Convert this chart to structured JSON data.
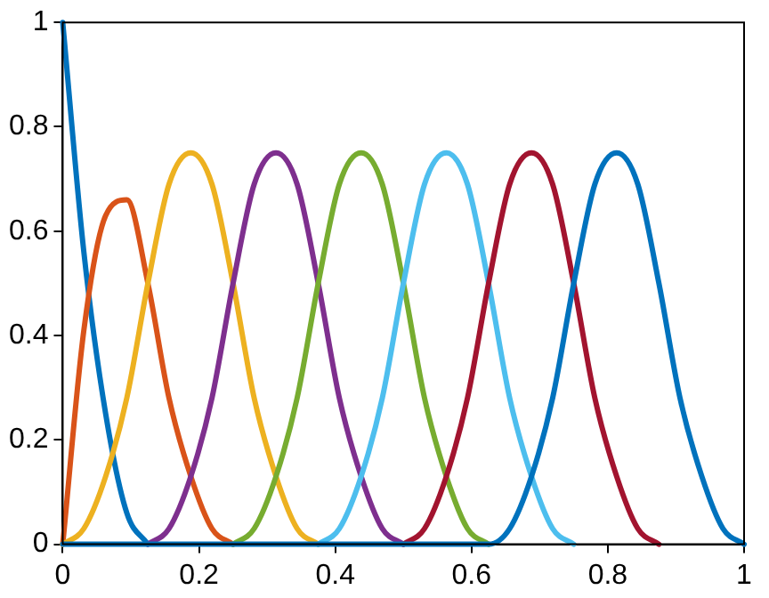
{
  "chart_data": {
    "type": "line",
    "x": [
      0,
      0.031,
      0.063,
      0.094,
      0.125,
      0.156,
      0.188,
      0.219,
      0.25,
      0.281,
      0.313,
      0.344,
      0.375,
      0.406,
      0.438,
      0.469,
      0.5,
      0.531,
      0.563,
      0.594,
      0.625,
      0.656,
      0.688,
      0.719,
      0.75,
      0.781,
      0.813,
      0.844,
      0.875,
      0.906,
      0.938,
      0.969,
      1
    ],
    "series": [
      {
        "color": "#0072bd",
        "values": [
          1,
          0.56,
          0.25,
          0.06,
          0,
          null,
          null,
          null,
          null,
          null,
          null,
          null,
          null,
          null,
          null,
          null,
          null,
          null,
          null,
          null,
          null,
          null,
          null,
          null,
          null,
          null,
          null,
          null,
          null,
          null,
          null,
          null,
          null
        ]
      },
      {
        "color": "#d95319",
        "values": [
          0,
          0.41,
          0.63,
          0.66,
          0.5,
          0.28,
          0.13,
          0.03,
          0,
          null,
          null,
          null,
          null,
          null,
          null,
          null,
          null,
          null,
          null,
          null,
          null,
          null,
          null,
          null,
          null,
          null,
          null,
          null,
          null,
          null,
          null,
          null,
          null
        ]
      },
      {
        "color": "#edb120",
        "values": [
          0,
          0.03,
          0.13,
          0.28,
          0.5,
          0.69,
          0.75,
          0.69,
          0.5,
          0.28,
          0.13,
          0.03,
          0,
          null,
          null,
          null,
          null,
          null,
          null,
          null,
          null,
          null,
          null,
          null,
          null,
          null,
          null,
          null,
          null,
          null,
          null,
          null,
          null
        ]
      },
      {
        "color": "#7e2f8e",
        "values": [
          null,
          null,
          null,
          null,
          0,
          0.03,
          0.13,
          0.28,
          0.5,
          0.69,
          0.75,
          0.69,
          0.5,
          0.28,
          0.13,
          0.03,
          0,
          null,
          null,
          null,
          null,
          null,
          null,
          null,
          null,
          null,
          null,
          null,
          null,
          null,
          null,
          null,
          null
        ]
      },
      {
        "color": "#77ac30",
        "values": [
          null,
          null,
          null,
          null,
          null,
          null,
          null,
          null,
          0,
          0.03,
          0.13,
          0.28,
          0.5,
          0.69,
          0.75,
          0.69,
          0.5,
          0.28,
          0.13,
          0.03,
          0,
          null,
          null,
          null,
          null,
          null,
          null,
          null,
          null,
          null,
          null,
          null,
          null
        ]
      },
      {
        "color": "#4dbeee",
        "values": [
          null,
          null,
          null,
          null,
          null,
          null,
          null,
          null,
          null,
          null,
          null,
          null,
          0,
          0.03,
          0.13,
          0.28,
          0.5,
          0.69,
          0.75,
          0.69,
          0.5,
          0.28,
          0.13,
          0.03,
          0,
          null,
          null,
          null,
          null,
          null,
          null,
          null,
          null
        ]
      },
      {
        "color": "#a2142f",
        "values": [
          null,
          null,
          null,
          null,
          null,
          null,
          null,
          null,
          null,
          null,
          null,
          null,
          null,
          null,
          null,
          null,
          0,
          0.03,
          0.13,
          0.28,
          0.5,
          0.69,
          0.75,
          0.69,
          0.5,
          0.28,
          0.13,
          0.03,
          0,
          null,
          null,
          null,
          null
        ]
      },
      {
        "color": "#0072bd",
        "values": [
          0,
          0,
          0,
          0,
          0,
          0,
          0,
          0,
          0,
          0,
          0,
          0,
          0,
          0,
          0,
          0,
          0,
          0,
          0,
          0,
          0,
          0.03,
          0.13,
          0.28,
          0.5,
          0.69,
          0.75,
          0.69,
          0.5,
          0.28,
          0.13,
          0.03,
          0
        ]
      }
    ],
    "xlim": [
      0,
      1
    ],
    "xticks": [
      0,
      0.2,
      0.4,
      0.6,
      0.8,
      1
    ],
    "ylim": [
      0,
      1
    ],
    "yticks": [
      0,
      0.2,
      0.4,
      0.6,
      0.8,
      1
    ],
    "grid": false,
    "legend": false,
    "marker": "none",
    "line_style": "solid"
  }
}
